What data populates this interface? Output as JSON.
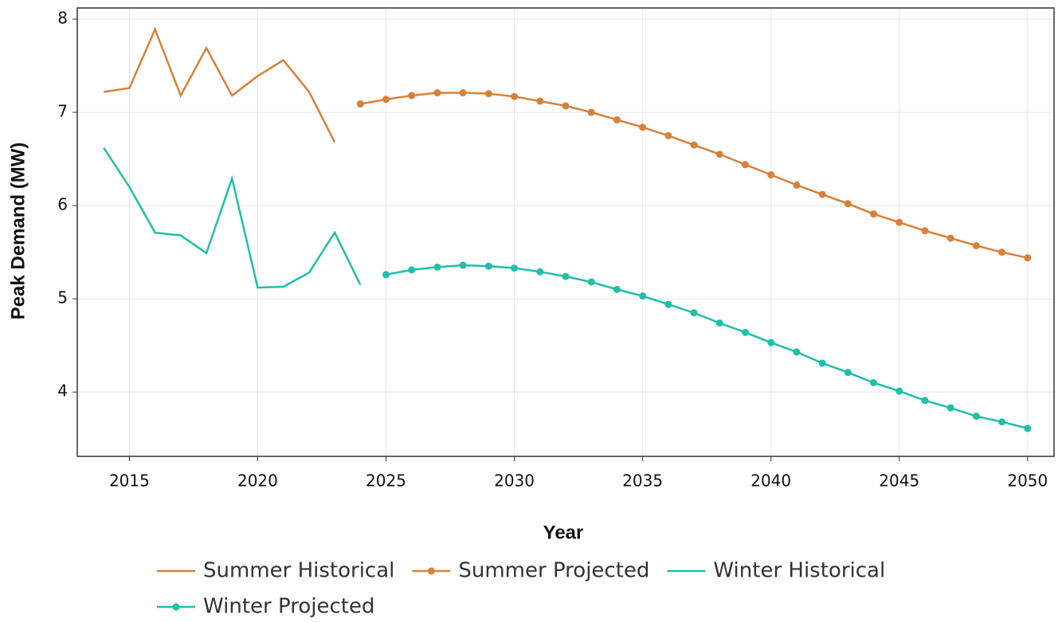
{
  "chart_data": {
    "type": "line",
    "x_label": "Year",
    "y_label": "Peak Demand (MW)",
    "x": [
      2014,
      2015,
      2016,
      2017,
      2018,
      2019,
      2020,
      2021,
      2022,
      2023,
      2024,
      2025,
      2026,
      2027,
      2028,
      2029,
      2030,
      2031,
      2032,
      2033,
      2034,
      2035,
      2036,
      2037,
      2038,
      2039,
      2040,
      2041,
      2042,
      2043,
      2044,
      2045,
      2046,
      2047,
      2048,
      2049,
      2050
    ],
    "series": [
      {
        "name": "Summer Historical",
        "color": "#d98038",
        "markers": false,
        "values": [
          7.22,
          7.26,
          7.89,
          7.18,
          7.69,
          7.18,
          7.39,
          7.56,
          7.22,
          6.68,
          null,
          null,
          null,
          null,
          null,
          null,
          null,
          null,
          null,
          null,
          null,
          null,
          null,
          null,
          null,
          null,
          null,
          null,
          null,
          null,
          null,
          null,
          null,
          null,
          null,
          null,
          null
        ]
      },
      {
        "name": "Summer Projected",
        "color": "#d98038",
        "markers": true,
        "values": [
          null,
          null,
          null,
          null,
          null,
          null,
          null,
          null,
          null,
          null,
          7.09,
          7.14,
          7.18,
          7.21,
          7.21,
          7.2,
          7.17,
          7.12,
          7.07,
          7.0,
          6.92,
          6.84,
          6.75,
          6.65,
          6.55,
          6.44,
          6.33,
          6.22,
          6.12,
          6.02,
          5.91,
          5.82,
          5.73,
          5.65,
          5.57,
          5.5,
          5.44
        ]
      },
      {
        "name": "Winter Historical",
        "color": "#1fbfa8",
        "markers": false,
        "values": [
          6.62,
          6.2,
          5.71,
          5.68,
          5.49,
          6.29,
          5.12,
          5.13,
          5.28,
          5.71,
          5.15,
          null,
          null,
          null,
          null,
          null,
          null,
          null,
          null,
          null,
          null,
          null,
          null,
          null,
          null,
          null,
          null,
          null,
          null,
          null,
          null,
          null,
          null,
          null,
          null,
          null,
          null
        ]
      },
      {
        "name": "Winter Projected",
        "color": "#1fbfa8",
        "markers": true,
        "values": [
          null,
          null,
          null,
          null,
          null,
          null,
          null,
          null,
          null,
          null,
          null,
          5.26,
          5.31,
          5.34,
          5.36,
          5.35,
          5.33,
          5.29,
          5.24,
          5.18,
          5.1,
          5.03,
          4.94,
          4.85,
          4.74,
          4.64,
          4.53,
          4.43,
          4.31,
          4.21,
          4.1,
          4.01,
          3.91,
          3.83,
          3.74,
          3.68,
          3.61
        ]
      }
    ],
    "xlim": [
      2012.97,
      2051.03
    ],
    "xticks": [
      2015,
      2020,
      2025,
      2030,
      2035,
      2040,
      2045,
      2050
    ],
    "ylim": [
      3.31,
      8.12
    ],
    "yticks": [
      4,
      5,
      6,
      7,
      8
    ],
    "grid": true,
    "legend": "bottom"
  }
}
